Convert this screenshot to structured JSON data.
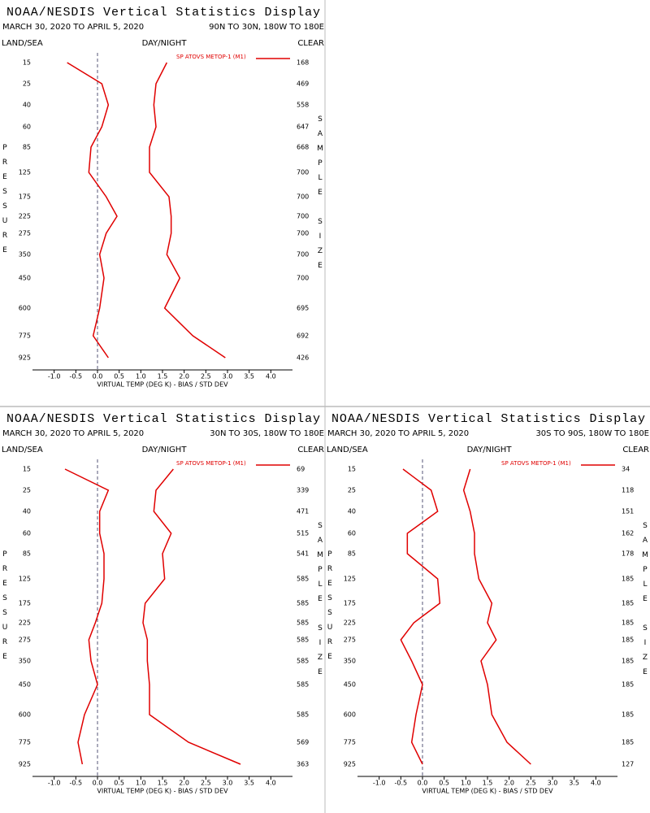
{
  "chart_data": [
    {
      "type": "line",
      "title": "NOAA/NESDIS Vertical Statistics Display",
      "subtitle": "MARCH 30, 2020 TO APRIL 5, 2020",
      "region": "90N TO 30N, 180W TO 180E",
      "land_sea": "LAND/SEA",
      "day_night": "DAY/NIGHT",
      "clear": "CLEAR",
      "xlabel": "VIRTUAL TEMP (DEG K) - BIAS / STD DEV",
      "ylabel": "PRESSURE",
      "y2label": "SAMPLE SIZE",
      "categories": [
        "15",
        "25",
        "40",
        "60",
        "85",
        "125",
        "175",
        "225",
        "275",
        "350",
        "450",
        "600",
        "775",
        "925"
      ],
      "sample_size": [
        "168",
        "469",
        "558",
        "647",
        "668",
        "700",
        "700",
        "700",
        "700",
        "700",
        "700",
        "695",
        "692",
        "426"
      ],
      "series": [
        {
          "name": "SP ATOVS METOP-1 (M1)",
          "color": "#e00000",
          "bias": [
            -0.7,
            0.1,
            0.25,
            0.1,
            -0.15,
            -0.2,
            0.2,
            0.45,
            0.2,
            0.05,
            0.15,
            0.05,
            -0.1,
            0.25
          ],
          "std_dev": [
            1.6,
            1.35,
            1.3,
            1.35,
            1.2,
            1.2,
            1.65,
            1.7,
            1.7,
            1.6,
            1.9,
            1.55,
            2.2,
            2.95
          ]
        }
      ],
      "xlim": [
        -1.5,
        4.5
      ],
      "xticks": [
        {
          "value": -1,
          "label": "-1.0"
        },
        -0.5,
        {
          "value": 0,
          "label": "0.0"
        },
        0.5,
        {
          "value": 1,
          "label": "1.0"
        },
        1.5,
        {
          "value": 2,
          "label": "2.0"
        },
        2.5,
        {
          "value": 3,
          "label": "3.0"
        },
        3.5,
        {
          "value": 4,
          "label": "4.0"
        }
      ]
    },
    {
      "type": "line",
      "title": "NOAA/NESDIS Vertical Statistics Display",
      "subtitle": "MARCH 30, 2020 TO APRIL 5, 2020",
      "region": "30N TO 30S, 180W TO 180E",
      "land_sea": "LAND/SEA",
      "day_night": "DAY/NIGHT",
      "clear": "CLEAR",
      "xlabel": "VIRTUAL TEMP (DEG K) - BIAS / STD DEV",
      "ylabel": "PRESSURE",
      "y2label": "SAMPLE SIZE",
      "categories": [
        "15",
        "25",
        "40",
        "60",
        "85",
        "125",
        "175",
        "225",
        "275",
        "350",
        "450",
        "600",
        "775",
        "925"
      ],
      "sample_size": [
        "69",
        "339",
        "471",
        "515",
        "541",
        "585",
        "585",
        "585",
        "585",
        "585",
        "585",
        "585",
        "569",
        "363"
      ],
      "series": [
        {
          "name": "SP ATOVS METOP-1 (M1)",
          "color": "#e00000",
          "bias": [
            -0.75,
            0.25,
            0.05,
            0.05,
            0.15,
            0.15,
            0.1,
            -0.05,
            -0.2,
            -0.15,
            0.0,
            -0.3,
            -0.45,
            -0.35
          ],
          "std_dev": [
            1.75,
            1.35,
            1.3,
            1.7,
            1.5,
            1.55,
            1.1,
            1.05,
            1.15,
            1.15,
            1.2,
            1.2,
            2.1,
            3.3
          ]
        }
      ],
      "xlim": [
        -1.5,
        4.5
      ],
      "xticks": [
        {
          "value": -1,
          "label": "-1.0"
        },
        -0.5,
        {
          "value": 0,
          "label": "0.0"
        },
        0.5,
        {
          "value": 1,
          "label": "1.0"
        },
        1.5,
        {
          "value": 2,
          "label": "2.0"
        },
        2.5,
        {
          "value": 3,
          "label": "3.0"
        },
        3.5,
        {
          "value": 4,
          "label": "4.0"
        }
      ]
    },
    {
      "type": "line",
      "title": "NOAA/NESDIS Vertical Statistics Display",
      "subtitle": "MARCH 30, 2020 TO APRIL 5, 2020",
      "region": "30S TO 90S, 180W TO 180E",
      "land_sea": "LAND/SEA",
      "day_night": "DAY/NIGHT",
      "clear": "CLEAR",
      "xlabel": "VIRTUAL TEMP (DEG K) - BIAS / STD DEV",
      "ylabel": "PRESSURE",
      "y2label": "SAMPLE SIZE",
      "categories": [
        "15",
        "25",
        "40",
        "60",
        "85",
        "125",
        "175",
        "225",
        "275",
        "350",
        "450",
        "600",
        "775",
        "925"
      ],
      "sample_size": [
        "34",
        "118",
        "151",
        "162",
        "178",
        "185",
        "185",
        "185",
        "185",
        "185",
        "185",
        "185",
        "185",
        "127"
      ],
      "series": [
        {
          "name": "SP ATOVS METOP-1 (M1)",
          "color": "#e00000",
          "bias": [
            -0.45,
            0.2,
            0.35,
            -0.35,
            -0.35,
            0.35,
            0.4,
            -0.2,
            -0.5,
            -0.25,
            0.0,
            -0.15,
            -0.25,
            0.0
          ],
          "std_dev": [
            1.1,
            0.95,
            1.1,
            1.2,
            1.2,
            1.3,
            1.6,
            1.5,
            1.7,
            1.35,
            1.5,
            1.6,
            1.95,
            2.5
          ]
        }
      ],
      "xlim": [
        -1.5,
        4.5
      ],
      "xticks": [
        {
          "value": -1,
          "label": "-1.0"
        },
        -0.5,
        {
          "value": 0,
          "label": "0.0"
        },
        0.5,
        {
          "value": 1,
          "label": "1.0"
        },
        1.5,
        {
          "value": 2,
          "label": "2.0"
        },
        2.5,
        {
          "value": 3,
          "label": "3.0"
        },
        3.5,
        {
          "value": 4,
          "label": "4.0"
        }
      ]
    }
  ]
}
